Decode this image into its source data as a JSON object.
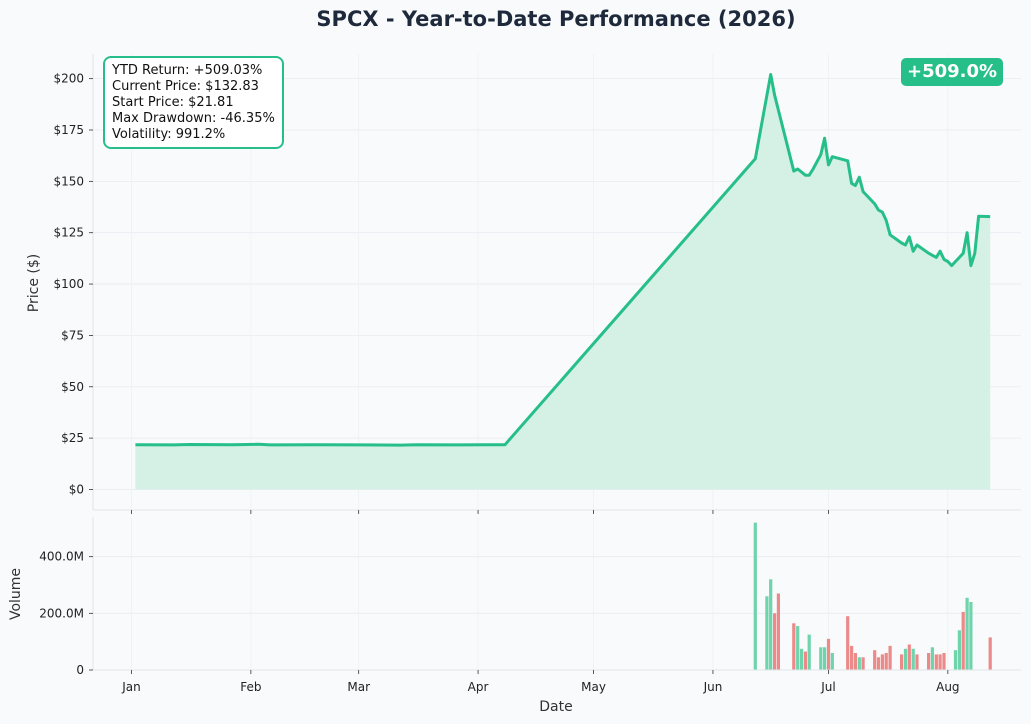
{
  "chart_data": {
    "type": "line",
    "title": "SPCX - Year-to-Date Performance (2026)",
    "xlabel": "Date",
    "ylabel": "Price ($)",
    "volume_label": "Volume",
    "x_ticks": [
      "Jan",
      "Feb",
      "Mar",
      "Apr",
      "May",
      "Jun",
      "Jul",
      "Aug"
    ],
    "x_tick_dates": [
      "2026-01-01",
      "2026-02-01",
      "2026-03-01",
      "2026-04-01",
      "2026-05-01",
      "2026-06-01",
      "2026-07-01",
      "2026-08-01"
    ],
    "x_range": [
      "2025-12-22",
      "2026-08-20"
    ],
    "price_ylim": [
      -10,
      212
    ],
    "price_yticks": [
      {
        "value": 0,
        "label": "$0"
      },
      {
        "value": 25,
        "label": "$25"
      },
      {
        "value": 50,
        "label": "$50"
      },
      {
        "value": 75,
        "label": "$75"
      },
      {
        "value": 100,
        "label": "$100"
      },
      {
        "value": 125,
        "label": "$125"
      },
      {
        "value": 150,
        "label": "$150"
      },
      {
        "value": 175,
        "label": "$175"
      },
      {
        "value": 200,
        "label": "$200"
      }
    ],
    "volume_ylim": [
      0,
      540
    ],
    "volume_yticks": [
      {
        "value": 0,
        "label": "0"
      },
      {
        "value": 200,
        "label": "200.0M"
      },
      {
        "value": 400,
        "label": "400.0M"
      }
    ],
    "grid": true,
    "price_series": {
      "name": "SPCX",
      "color": "#26bf8a",
      "fill": "#d5f0e4",
      "points": [
        [
          "2026-01-02",
          21.8
        ],
        [
          "2026-01-12",
          21.7
        ],
        [
          "2026-01-16",
          21.9
        ],
        [
          "2026-01-27",
          21.8
        ],
        [
          "2026-02-03",
          22.0
        ],
        [
          "2026-02-06",
          21.7
        ],
        [
          "2026-02-18",
          21.8
        ],
        [
          "2026-03-02",
          21.7
        ],
        [
          "2026-03-12",
          21.6
        ],
        [
          "2026-03-16",
          21.8
        ],
        [
          "2026-03-27",
          21.7
        ],
        [
          "2026-04-03",
          21.8
        ],
        [
          "2026-04-08",
          21.8
        ],
        [
          "2026-06-12",
          161
        ],
        [
          "2026-06-16",
          202
        ],
        [
          "2026-06-17",
          192
        ],
        [
          "2026-06-22",
          155
        ],
        [
          "2026-06-23",
          156
        ],
        [
          "2026-06-25",
          153
        ],
        [
          "2026-06-26",
          153
        ],
        [
          "2026-06-27",
          156
        ],
        [
          "2026-06-29",
          163
        ],
        [
          "2026-06-30",
          171
        ],
        [
          "2026-07-01",
          158
        ],
        [
          "2026-07-02",
          162
        ],
        [
          "2026-07-06",
          160
        ],
        [
          "2026-07-07",
          149
        ],
        [
          "2026-07-08",
          148
        ],
        [
          "2026-07-09",
          152
        ],
        [
          "2026-07-10",
          145
        ],
        [
          "2026-07-13",
          139
        ],
        [
          "2026-07-14",
          136
        ],
        [
          "2026-07-15",
          135
        ],
        [
          "2026-07-16",
          131
        ],
        [
          "2026-07-17",
          124
        ],
        [
          "2026-07-20",
          120
        ],
        [
          "2026-07-21",
          119
        ],
        [
          "2026-07-22",
          123
        ],
        [
          "2026-07-23",
          116
        ],
        [
          "2026-07-24",
          119
        ],
        [
          "2026-07-27",
          115
        ],
        [
          "2026-07-28",
          114
        ],
        [
          "2026-07-29",
          113
        ],
        [
          "2026-07-30",
          116
        ],
        [
          "2026-07-31",
          112
        ],
        [
          "2026-08-01",
          111
        ],
        [
          "2026-08-02",
          109
        ],
        [
          "2026-08-03",
          111
        ],
        [
          "2026-08-04",
          113
        ],
        [
          "2026-08-05",
          115
        ],
        [
          "2026-08-06",
          125
        ],
        [
          "2026-08-07",
          109
        ],
        [
          "2026-08-08",
          115
        ],
        [
          "2026-08-09",
          133
        ],
        [
          "2026-08-12",
          132.83
        ]
      ]
    },
    "volume_series": {
      "up_color": "#6fd3ac",
      "down_color": "#ec8a8a",
      "bars": [
        [
          "2026-06-12",
          520,
          "up"
        ],
        [
          "2026-06-15",
          260,
          "up"
        ],
        [
          "2026-06-16",
          320,
          "up"
        ],
        [
          "2026-06-17",
          200,
          "down"
        ],
        [
          "2026-06-18",
          270,
          "down"
        ],
        [
          "2026-06-22",
          165,
          "down"
        ],
        [
          "2026-06-23",
          155,
          "up"
        ],
        [
          "2026-06-24",
          75,
          "up"
        ],
        [
          "2026-06-25",
          65,
          "down"
        ],
        [
          "2026-06-26",
          125,
          "up"
        ],
        [
          "2026-06-29",
          80,
          "up"
        ],
        [
          "2026-06-30",
          80,
          "up"
        ],
        [
          "2026-07-01",
          110,
          "down"
        ],
        [
          "2026-07-02",
          60,
          "up"
        ],
        [
          "2026-07-06",
          190,
          "down"
        ],
        [
          "2026-07-07",
          85,
          "down"
        ],
        [
          "2026-07-08",
          60,
          "down"
        ],
        [
          "2026-07-09",
          45,
          "up"
        ],
        [
          "2026-07-10",
          45,
          "down"
        ],
        [
          "2026-07-13",
          70,
          "down"
        ],
        [
          "2026-07-14",
          45,
          "down"
        ],
        [
          "2026-07-15",
          55,
          "down"
        ],
        [
          "2026-07-16",
          60,
          "down"
        ],
        [
          "2026-07-17",
          85,
          "down"
        ],
        [
          "2026-07-20",
          55,
          "down"
        ],
        [
          "2026-07-21",
          75,
          "up"
        ],
        [
          "2026-07-22",
          90,
          "down"
        ],
        [
          "2026-07-23",
          75,
          "up"
        ],
        [
          "2026-07-24",
          55,
          "down"
        ],
        [
          "2026-07-27",
          60,
          "down"
        ],
        [
          "2026-07-28",
          80,
          "up"
        ],
        [
          "2026-07-29",
          55,
          "down"
        ],
        [
          "2026-07-30",
          55,
          "down"
        ],
        [
          "2026-07-31",
          60,
          "down"
        ],
        [
          "2026-08-03",
          70,
          "up"
        ],
        [
          "2026-08-04",
          140,
          "up"
        ],
        [
          "2026-08-05",
          205,
          "down"
        ],
        [
          "2026-08-06",
          255,
          "up"
        ],
        [
          "2026-08-07",
          240,
          "up"
        ],
        [
          "2026-08-12",
          115,
          "down"
        ]
      ]
    }
  },
  "stats": {
    "ytd_return": "YTD Return: +509.03%",
    "current_price": "Current Price: $132.83",
    "start_price": "Start Price: $21.81",
    "max_drawdown": "Max Drawdown: -46.35%",
    "volatility": "Volatility: 991.2%"
  },
  "badge": "+509.0%"
}
